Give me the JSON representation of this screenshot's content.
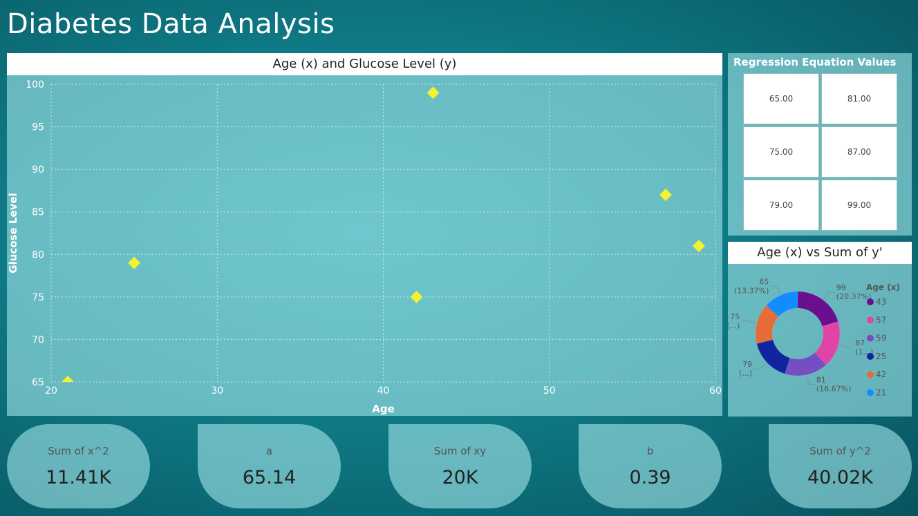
{
  "dashboard": {
    "title": "Diabetes Data Analysis"
  },
  "scatter": {
    "title": "Age (x) and Glucose Level (y)",
    "marker_color": "#f2f230"
  },
  "regression": {
    "title": "Regression Equation Values",
    "cells": [
      "65.00",
      "81.00",
      "75.00",
      "87.00",
      "79.00",
      "99.00"
    ]
  },
  "donut": {
    "title": "Age (x) vs Sum of y'",
    "legend_title": "Age (x)"
  },
  "kpis": [
    {
      "label": "Sum of x^2",
      "value": "11.41K"
    },
    {
      "label": "a",
      "value": "65.14"
    },
    {
      "label": "Sum of xy",
      "value": "20K"
    },
    {
      "label": "b",
      "value": "0.39"
    },
    {
      "label": "Sum of y^2",
      "value": "40.02K"
    }
  ],
  "chart_data": [
    {
      "type": "scatter",
      "title": "Age (x) and Glucose Level (y)",
      "xlabel": "Age",
      "ylabel": "Glucose Level",
      "xlim": [
        20,
        60
      ],
      "ylim": [
        65,
        100
      ],
      "xticks": [
        20,
        30,
        40,
        50,
        60
      ],
      "yticks": [
        65,
        70,
        75,
        80,
        85,
        90,
        95,
        100
      ],
      "grid": true,
      "points": [
        {
          "x": 21,
          "y": 65
        },
        {
          "x": 25,
          "y": 79
        },
        {
          "x": 42,
          "y": 75
        },
        {
          "x": 43,
          "y": 99
        },
        {
          "x": 57,
          "y": 87
        },
        {
          "x": 59,
          "y": 81
        }
      ]
    },
    {
      "type": "pie",
      "title": "Age (x) vs Sum of y'",
      "legend_title": "Age (x)",
      "legend_position": "right",
      "slices": [
        {
          "name": "43",
          "value": 99,
          "label": "99",
          "pct_label": "(20.37%)",
          "color": "#6a0f8e"
        },
        {
          "name": "57",
          "value": 87,
          "label": "87",
          "pct_label": "(1...)",
          "color": "#e044a7"
        },
        {
          "name": "59",
          "value": 81,
          "label": "81",
          "pct_label": "(16.67%)",
          "color": "#744ec2"
        },
        {
          "name": "25",
          "value": 79,
          "label": "79",
          "pct_label": "(...)",
          "color": "#12239e"
        },
        {
          "name": "42",
          "value": 75,
          "label": "75",
          "pct_label": "(...)",
          "color": "#e66c37"
        },
        {
          "name": "21",
          "value": 65,
          "label": "65",
          "pct_label": "(13.37%)",
          "color": "#118dff"
        }
      ]
    }
  ]
}
